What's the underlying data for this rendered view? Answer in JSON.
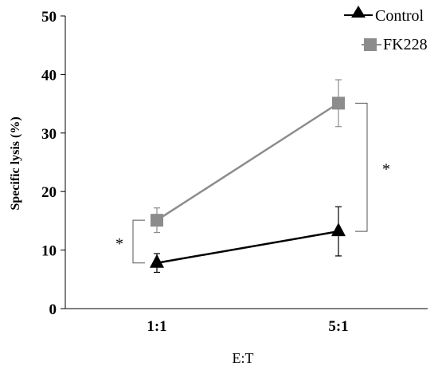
{
  "chart_data": {
    "type": "line",
    "title": "",
    "xlabel": "E:T",
    "ylabel": "Specific lysis (%)",
    "categories": [
      "1:1",
      "5:1"
    ],
    "ylim": [
      0,
      50
    ],
    "yticks": [
      "0",
      "10",
      "20",
      "30",
      "40",
      "50"
    ],
    "grid": false,
    "legend_position": "top-right",
    "series": [
      {
        "name": "Control",
        "marker": "triangle",
        "color": "#000000",
        "values": [
          7.8,
          13.2
        ],
        "error": [
          1.6,
          4.2
        ]
      },
      {
        "name": "FK228",
        "marker": "square",
        "color": "#8c8c8c",
        "values": [
          15.1,
          35.1
        ],
        "error": [
          2.1,
          4.0
        ]
      }
    ],
    "annotations": [
      {
        "text": "*",
        "category_index": 0,
        "from": 7.8,
        "to": 15.1
      },
      {
        "text": "*",
        "category_index": 1,
        "from": 13.2,
        "to": 35.1
      }
    ]
  }
}
